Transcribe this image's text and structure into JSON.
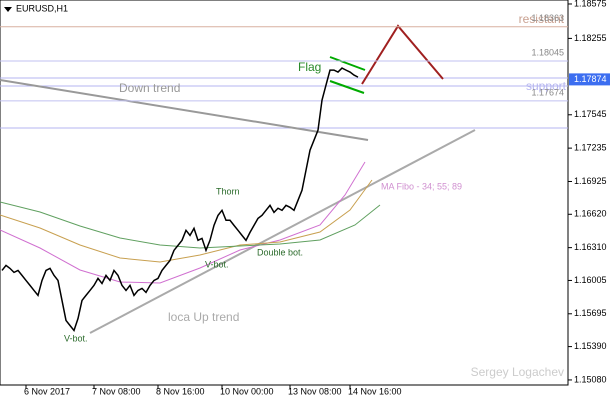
{
  "chart_data": {
    "type": "line",
    "title": "EURUSD,H1",
    "categories": [
      null,
      null,
      null,
      null,
      null,
      null,
      "6 Nov 2017",
      null,
      null,
      null,
      null,
      null,
      null,
      null,
      null,
      null,
      null,
      null,
      null,
      null,
      null,
      null,
      null,
      "7 Nov 08:00",
      null,
      null,
      null,
      null,
      null,
      null,
      null,
      null,
      null,
      null,
      null,
      null,
      null,
      null,
      null,
      "8 Nov 16:00",
      null,
      null,
      null,
      null,
      null,
      null,
      null,
      null,
      null,
      null,
      null,
      null,
      null,
      null,
      null,
      "10 Nov 00:00",
      null,
      null,
      null,
      null,
      null,
      null,
      null,
      null,
      null,
      null,
      null,
      null,
      null,
      null,
      null,
      null,
      "13 Nov 08:00",
      null,
      null,
      null,
      null,
      null,
      null,
      null,
      null,
      null,
      null,
      null,
      null,
      null,
      null,
      "14 Nov 16:00",
      null,
      null
    ],
    "series": [
      {
        "name": "EURUSD",
        "color": "#000000",
        "values": [
          1.16098,
          1.16145,
          1.16117,
          1.1608,
          1.16098,
          1.16052,
          1.16005,
          1.15959,
          1.15912,
          1.15866,
          1.16005,
          1.16098,
          1.16117,
          1.16052,
          1.16005,
          1.15819,
          1.15633,
          1.15586,
          1.1554,
          1.15651,
          1.15819,
          1.15866,
          1.15912,
          1.15959,
          1.16024,
          1.15977,
          1.16052,
          1.16005,
          1.16098,
          1.16052,
          1.15959,
          1.15912,
          1.15959,
          1.15866,
          1.15912,
          1.15931,
          1.15894,
          1.15959,
          1.16005,
          1.16024,
          1.16098,
          1.16145,
          1.16191,
          1.16285,
          1.16331,
          1.16378,
          1.16471,
          1.16424,
          1.16489,
          1.16378,
          1.16396,
          1.16285,
          1.16378,
          1.16517,
          1.1661,
          1.16657,
          1.16564,
          1.16564,
          1.16517,
          1.16471,
          1.16424,
          1.16378,
          1.16452,
          1.16517,
          1.16582,
          1.1661,
          1.16657,
          1.16703,
          1.16638,
          1.16676,
          1.16657,
          1.16703,
          1.16685,
          1.16657,
          1.1675,
          1.16843,
          1.17029,
          1.17216,
          1.17309,
          1.17402,
          1.17681,
          1.17821,
          1.1796,
          1.1796,
          1.17942,
          1.17979,
          1.1796,
          1.17942,
          1.17914,
          1.17895
        ]
      }
    ],
    "ylim": [
      1.15033,
      1.18612
    ],
    "yticks": [
      1.18575,
      1.18255,
      1.17545,
      1.17235,
      1.16925,
      {
        "value": 1.1662,
        "label": "1.16620"
      },
      {
        "value": 1.1631,
        "label": "1.16310"
      },
      1.16005,
      1.15695,
      {
        "value": 1.1539,
        "label": "1.15390"
      },
      {
        "value": 1.1508,
        "label": "1.15080"
      }
    ],
    "current_price": 1.17874,
    "levels": [
      1.18363,
      1.18045,
      1.17674
    ],
    "annotations": {
      "flag": "Flag",
      "down_trend": "Down trend",
      "resistant": "resistant",
      "support": "support",
      "thorn": "Thorn",
      "v_bot_1": "V-bot.",
      "double_bot": "Double bot.",
      "ma_fibo": "MA Fibo - 34; 55; 89",
      "up_trend": "loca Up trend",
      "v_bot_2": "V-bot.",
      "author": "Sergey Logachev"
    }
  }
}
